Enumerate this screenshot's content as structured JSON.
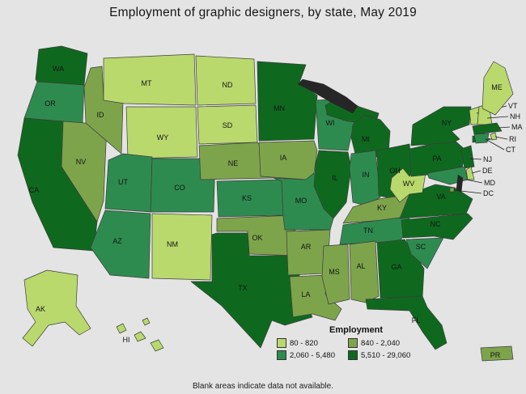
{
  "title": "Employment of graphic designers, by state, May 2019",
  "footnote": "Blank areas indicate data not available.",
  "legend": {
    "title": "Employment"
  },
  "chart_data": {
    "type": "choropleth",
    "region": "United States",
    "title": "Employment of graphic designers, by state, May 2019",
    "unit": "employment (number of graphic designers)",
    "bins": [
      {
        "label": "80 - 820",
        "color": "#b9d96d"
      },
      {
        "label": "840 - 2,040",
        "color": "#7da44b"
      },
      {
        "label": "2,060 - 5,480",
        "color": "#2e8b4f"
      },
      {
        "label": "5,510 - 29,060",
        "color": "#0e691e"
      }
    ],
    "states": [
      {
        "abbr": "WA",
        "bin": 3
      },
      {
        "abbr": "OR",
        "bin": 2
      },
      {
        "abbr": "CA",
        "bin": 3
      },
      {
        "abbr": "NV",
        "bin": 1
      },
      {
        "abbr": "ID",
        "bin": 1
      },
      {
        "abbr": "MT",
        "bin": 0
      },
      {
        "abbr": "WY",
        "bin": 0
      },
      {
        "abbr": "UT",
        "bin": 2
      },
      {
        "abbr": "CO",
        "bin": 2
      },
      {
        "abbr": "AZ",
        "bin": 2
      },
      {
        "abbr": "NM",
        "bin": 0
      },
      {
        "abbr": "ND",
        "bin": 0
      },
      {
        "abbr": "SD",
        "bin": 0
      },
      {
        "abbr": "NE",
        "bin": 1
      },
      {
        "abbr": "KS",
        "bin": 2
      },
      {
        "abbr": "OK",
        "bin": 1
      },
      {
        "abbr": "TX",
        "bin": 3
      },
      {
        "abbr": "MN",
        "bin": 3
      },
      {
        "abbr": "IA",
        "bin": 1
      },
      {
        "abbr": "MO",
        "bin": 2
      },
      {
        "abbr": "AR",
        "bin": 1
      },
      {
        "abbr": "LA",
        "bin": 1
      },
      {
        "abbr": "WI",
        "bin": 2
      },
      {
        "abbr": "IL",
        "bin": 3
      },
      {
        "abbr": "MI",
        "bin": 3
      },
      {
        "abbr": "IN",
        "bin": 2
      },
      {
        "abbr": "OH",
        "bin": 3
      },
      {
        "abbr": "KY",
        "bin": 1
      },
      {
        "abbr": "TN",
        "bin": 2
      },
      {
        "abbr": "MS",
        "bin": 1
      },
      {
        "abbr": "AL",
        "bin": 1
      },
      {
        "abbr": "GA",
        "bin": 3
      },
      {
        "abbr": "FL",
        "bin": 3
      },
      {
        "abbr": "SC",
        "bin": 2
      },
      {
        "abbr": "NC",
        "bin": 3
      },
      {
        "abbr": "VA",
        "bin": 3
      },
      {
        "abbr": "WV",
        "bin": 0
      },
      {
        "abbr": "PA",
        "bin": 3
      },
      {
        "abbr": "NY",
        "bin": 3
      },
      {
        "abbr": "NJ",
        "bin": 3
      },
      {
        "abbr": "DE",
        "bin": 0
      },
      {
        "abbr": "MD",
        "bin": 2
      },
      {
        "abbr": "DC",
        "bin": 1
      },
      {
        "abbr": "VT",
        "bin": 0
      },
      {
        "abbr": "NH",
        "bin": 0
      },
      {
        "abbr": "MA",
        "bin": 3
      },
      {
        "abbr": "RI",
        "bin": 0
      },
      {
        "abbr": "CT",
        "bin": 2
      },
      {
        "abbr": "ME",
        "bin": 0
      },
      {
        "abbr": "AK",
        "bin": 0
      },
      {
        "abbr": "HI",
        "bin": 0
      },
      {
        "abbr": "PR",
        "bin": 1
      }
    ]
  }
}
